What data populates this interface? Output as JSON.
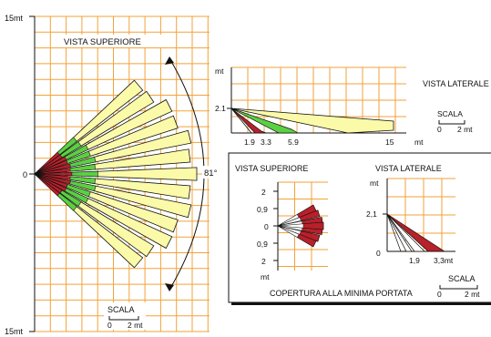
{
  "top_view": {
    "title": "VISTA SUPERIORE",
    "y_labels": {
      "top": "15mt",
      "middle": "0",
      "bottom": "15mt"
    },
    "angle_label": "81°",
    "scale": {
      "title": "SCALA",
      "start": "0",
      "end": "2 mt"
    }
  },
  "side_view": {
    "title": "VISTA LATERALE",
    "y_unit": "mt",
    "height_label": "2.1",
    "x_ticks": [
      "1.9",
      "3.3",
      "5.9",
      "15"
    ],
    "x_unit": "mt",
    "scale": {
      "title": "SCALA",
      "start": "0",
      "end": "2 mt"
    }
  },
  "min_range_panel": {
    "caption": "COPERTURA ALLA MINIMA PORTATA",
    "top_view": {
      "title": "VISTA SUPERIORE",
      "y_ticks": [
        "2",
        "0,9",
        "0",
        "0,9",
        "2"
      ],
      "y_unit": "mt"
    },
    "side_view": {
      "title": "VISTA LATERALE",
      "y_unit": "mt",
      "height_label": "2,1",
      "origin_label": "0",
      "x_ticks": [
        "1,9",
        "3,3mt"
      ]
    },
    "scale": {
      "title": "SCALA",
      "start": "0",
      "end": "2 mt"
    }
  },
  "colors": {
    "grid": "#f2a23a",
    "long_beam": "#fafaa8",
    "mid_beam": "#5bd042",
    "short_beam": "#b8202a",
    "outline": "#111111"
  }
}
